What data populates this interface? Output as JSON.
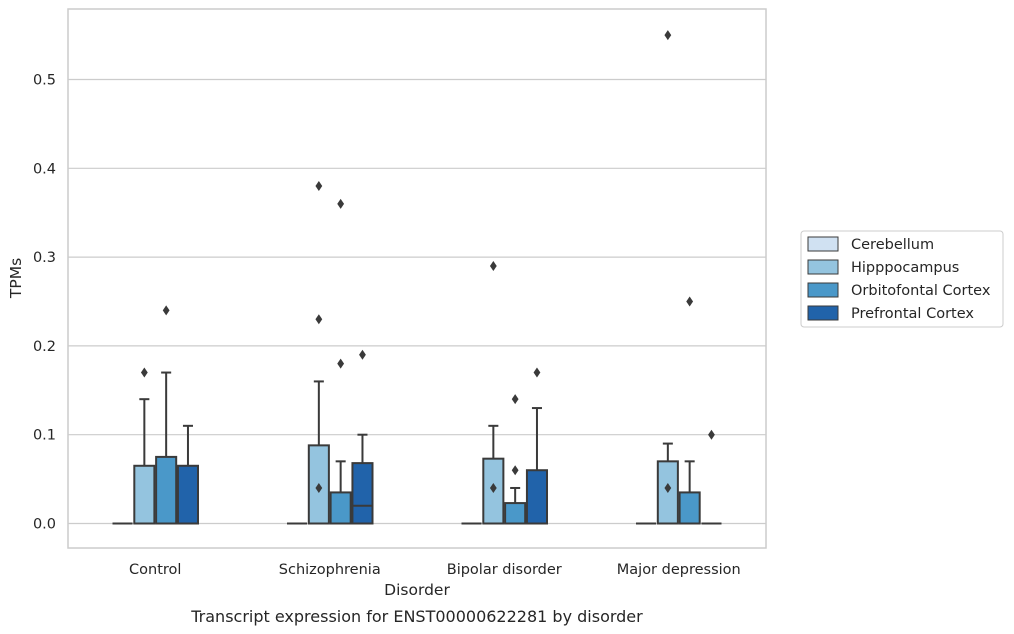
{
  "chart_data": {
    "type": "box",
    "caption": "Transcript expression for ENST00000622281 by disorder",
    "xlabel": "Disorder",
    "ylabel": "TPMs",
    "ylim": [
      -0.027,
      0.58
    ],
    "yticks": [
      0.0,
      0.1,
      0.2,
      0.3,
      0.4,
      0.5
    ],
    "ytick_labels": [
      "0.0",
      "0.1",
      "0.2",
      "0.3",
      "0.4",
      "0.5"
    ],
    "grid": "horizontal",
    "legend_position": "center-right-outside",
    "categories": [
      "Control",
      "Schizophrenia",
      "Bipolar disorder",
      "Major depression"
    ],
    "series": [
      {
        "name": "Cerebellum",
        "color": "#d0e1f2",
        "boxes": [
          {
            "q1": 0,
            "median": 0,
            "q3": 0,
            "whisker_low": 0,
            "whisker_high": 0,
            "fliers": []
          },
          {
            "q1": 0,
            "median": 0,
            "q3": 0,
            "whisker_low": 0,
            "whisker_high": 0,
            "fliers": []
          },
          {
            "q1": 0,
            "median": 0,
            "q3": 0,
            "whisker_low": 0,
            "whisker_high": 0,
            "fliers": []
          },
          {
            "q1": 0,
            "median": 0,
            "q3": 0,
            "whisker_low": 0,
            "whisker_high": 0,
            "fliers": []
          }
        ]
      },
      {
        "name": "Hipppocampus",
        "color": "#94c4df",
        "boxes": [
          {
            "q1": 0,
            "median": 0,
            "q3": 0.065,
            "whisker_low": 0,
            "whisker_high": 0.14,
            "fliers": [
              0.17
            ]
          },
          {
            "q1": 0,
            "median": 0,
            "q3": 0.088,
            "whisker_low": 0,
            "whisker_high": 0.16,
            "fliers": [
              0.38,
              0.23,
              0.04
            ]
          },
          {
            "q1": 0,
            "median": 0,
            "q3": 0.073,
            "whisker_low": 0,
            "whisker_high": 0.11,
            "fliers": [
              0.29,
              0.04
            ]
          },
          {
            "q1": 0,
            "median": 0,
            "q3": 0.07,
            "whisker_low": 0,
            "whisker_high": 0.09,
            "fliers": [
              0.55,
              0.04
            ]
          }
        ]
      },
      {
        "name": "Orbitofontal Cortex",
        "color": "#4a98c9",
        "boxes": [
          {
            "q1": 0,
            "median": 0,
            "q3": 0.075,
            "whisker_low": 0,
            "whisker_high": 0.17,
            "fliers": [
              0.24
            ]
          },
          {
            "q1": 0,
            "median": 0,
            "q3": 0.035,
            "whisker_low": 0,
            "whisker_high": 0.07,
            "fliers": [
              0.36,
              0.18
            ]
          },
          {
            "q1": 0,
            "median": 0,
            "q3": 0.023,
            "whisker_low": 0,
            "whisker_high": 0.04,
            "fliers": [
              0.14,
              0.06
            ]
          },
          {
            "q1": 0,
            "median": 0,
            "q3": 0.035,
            "whisker_low": 0,
            "whisker_high": 0.07,
            "fliers": [
              0.25
            ]
          }
        ]
      },
      {
        "name": "Prefrontal Cortex",
        "color": "#2163aa",
        "boxes": [
          {
            "q1": 0,
            "median": 0,
            "q3": 0.065,
            "whisker_low": 0,
            "whisker_high": 0.11,
            "fliers": []
          },
          {
            "q1": 0,
            "median": 0.02,
            "q3": 0.068,
            "whisker_low": 0,
            "whisker_high": 0.1,
            "fliers": [
              0.19
            ]
          },
          {
            "q1": 0,
            "median": 0,
            "q3": 0.06,
            "whisker_low": 0,
            "whisker_high": 0.13,
            "fliers": [
              0.17
            ]
          },
          {
            "q1": 0,
            "median": 0,
            "q3": 0,
            "whisker_low": 0,
            "whisker_high": 0,
            "fliers": [
              0.1
            ]
          }
        ]
      }
    ]
  }
}
